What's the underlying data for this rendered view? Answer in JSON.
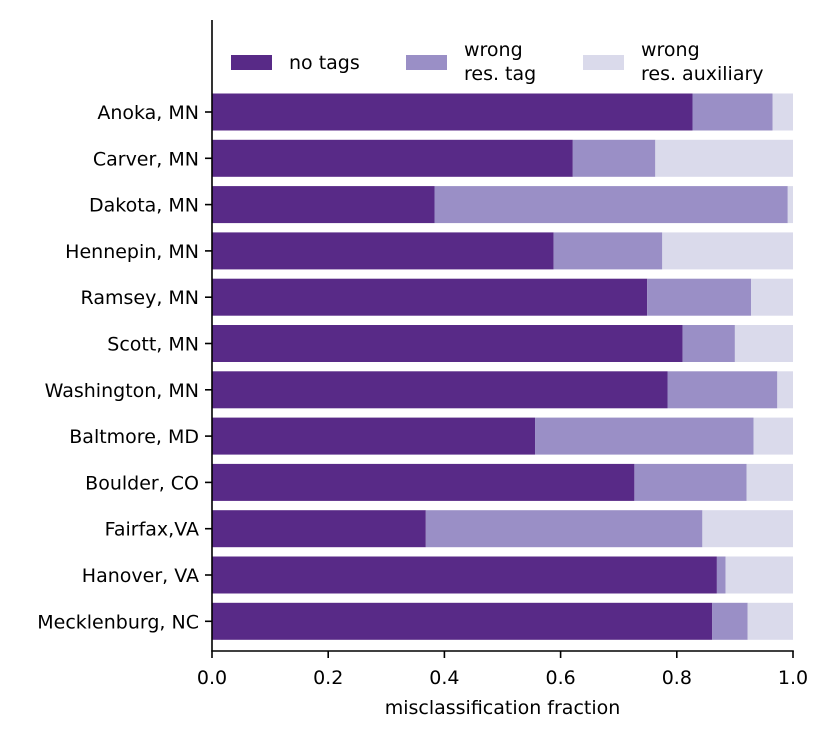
{
  "chart_data": {
    "type": "bar",
    "orientation": "horizontal",
    "stacked": true,
    "title": "",
    "xlabel": "misclassification fraction",
    "ylabel": "",
    "xlim": [
      0,
      1
    ],
    "xticks": [
      "0.0",
      "0.2",
      "0.4",
      "0.6",
      "0.8",
      "1.0"
    ],
    "xtick_values": [
      0,
      0.2,
      0.4,
      0.6,
      0.8,
      1.0
    ],
    "grid": false,
    "legend_position": "top",
    "categories": [
      "Anoka, MN",
      "Carver, MN",
      "Dakota, MN",
      "Hennepin, MN",
      "Ramsey, MN",
      "Scott, MN",
      "Washington, MN",
      "Baltmore, MD",
      "Boulder, CO",
      "Fairfax,VA",
      "Hanover, VA",
      "Mecklenburg, NC"
    ],
    "series": [
      {
        "name": "no tags",
        "legend_lines": [
          "no tags"
        ],
        "color": "#582a87",
        "values": [
          0.827,
          0.621,
          0.383,
          0.588,
          0.749,
          0.81,
          0.784,
          0.556,
          0.727,
          0.368,
          0.869,
          0.861
        ]
      },
      {
        "name": "wrong res. tag",
        "legend_lines": [
          "wrong",
          "res. tag"
        ],
        "color": "#9a8fc6",
        "values": [
          0.138,
          0.142,
          0.608,
          0.187,
          0.179,
          0.09,
          0.189,
          0.376,
          0.193,
          0.476,
          0.015,
          0.061
        ]
      },
      {
        "name": "wrong res. auxiliary",
        "legend_lines": [
          "wrong",
          "res. auxiliary"
        ],
        "color": "#dadaeb",
        "values": [
          0.035,
          0.237,
          0.009,
          0.225,
          0.072,
          0.1,
          0.027,
          0.068,
          0.08,
          0.156,
          0.116,
          0.078
        ]
      }
    ]
  }
}
